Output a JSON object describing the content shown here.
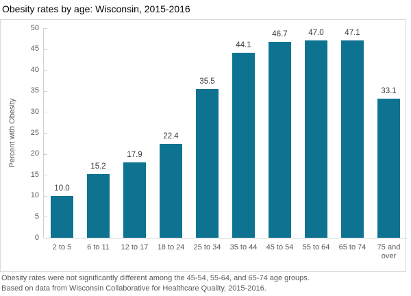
{
  "title": "Obesity rates by age: Wisconsin, 2015-2016",
  "footnotes": [
    "Obesity rates were not significantly different among the 45-54, 55-64, and 65-74 age groups.",
    "Based on data from Wisconsin Collaborative for Healthcare Quality, 2015-2016."
  ],
  "colors": {
    "bar": "#0e7391",
    "axis_line": "#d1d1d1",
    "frame_border": "#d9d9d9",
    "tick_label": "#595959",
    "value_label": "#3b3b3b",
    "title_text": "#000000"
  },
  "chart_data": {
    "type": "bar",
    "title": "Obesity rates by age: Wisconsin, 2015-2016",
    "categories": [
      "2 to 5",
      "6 to 11",
      "12 to 17",
      "18 to 24",
      "25 to 34",
      "35 to 44",
      "45 to 54",
      "55 to 64",
      "65 to 74",
      "75 and over"
    ],
    "values": [
      10.0,
      15.2,
      17.9,
      22.4,
      35.5,
      44.1,
      46.7,
      47.0,
      47.1,
      33.1
    ],
    "value_labels": [
      "10.0",
      "15.2",
      "17.9",
      "22.4",
      "35.5",
      "44.1",
      "46.7",
      "47.0",
      "47.1",
      "33.1"
    ],
    "xlabel": "",
    "ylabel": "Percent with Obesity",
    "ylim": [
      0,
      50
    ],
    "ytick_step": 5,
    "ytick_labels": [
      "0",
      "5",
      "10",
      "15",
      "20",
      "25",
      "30",
      "35",
      "40",
      "45",
      "50"
    ],
    "grid": false,
    "legend": null,
    "data_labels_shown": true
  }
}
